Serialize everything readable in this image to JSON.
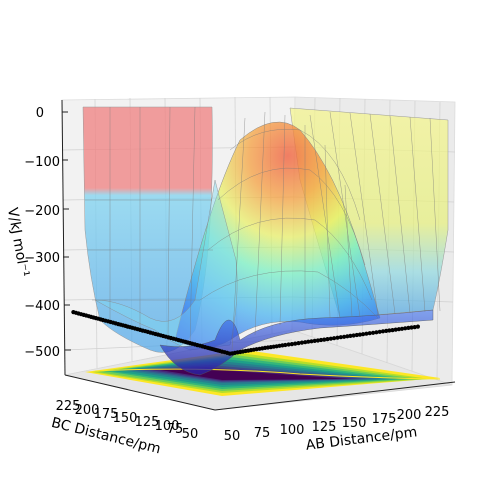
{
  "chart_data": {
    "type": "surface3d",
    "title": "",
    "xlabel": "AB Distance/pm",
    "ylabel": "BC Distance/pm",
    "zlabel": "V/kJ mol$^{-1}$",
    "zlabel_display": "V/kJ mol⁻¹",
    "x_ticks": [
      "50",
      "75",
      "100",
      "125",
      "150",
      "175",
      "200",
      "225"
    ],
    "y_ticks": [
      "50",
      "75",
      "100",
      "125",
      "150",
      "175",
      "200",
      "225"
    ],
    "z_ticks": [
      "0",
      "−100",
      "−200",
      "−300",
      "−400",
      "−500"
    ],
    "xlim": [
      50,
      240
    ],
    "ylim": [
      50,
      240
    ],
    "zlim": [
      -560,
      0
    ],
    "surface_colormap": "jet (semi-transparent)",
    "floor_contour_colormap": "viridis",
    "trajectory_color": "#000000",
    "series": [
      {
        "kind": "potential-energy-surface",
        "description": "",
        "plateau_z": -60,
        "channel_floor_z": -430,
        "barrier_z": -390
      },
      {
        "kind": "trajectory-projection",
        "points_xy": [
          [
            60,
            230
          ],
          [
            62,
            215
          ],
          [
            63,
            200
          ],
          [
            65,
            185
          ],
          [
            66,
            170
          ],
          [
            68,
            155
          ],
          [
            70,
            140
          ],
          [
            72,
            125
          ],
          [
            74,
            112
          ],
          [
            78,
            100
          ],
          [
            82,
            92
          ],
          [
            90,
            86
          ],
          [
            100,
            82
          ],
          [
            112,
            80
          ],
          [
            125,
            79
          ],
          [
            140,
            78
          ],
          [
            155,
            78
          ],
          [
            170,
            77
          ],
          [
            185,
            77
          ],
          [
            200,
            76
          ],
          [
            215,
            76
          ],
          [
            230,
            76
          ]
        ]
      }
    ],
    "grid": true,
    "legend": "none"
  }
}
